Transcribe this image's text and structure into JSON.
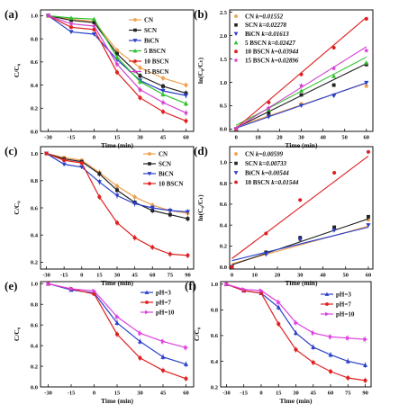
{
  "chart_data": [
    {
      "panel_label": "(a)",
      "type": "line",
      "x": [
        -30,
        -15,
        0,
        15,
        30,
        45,
        60
      ],
      "xlim": [
        -35,
        65
      ],
      "xticks": [
        -30,
        -15,
        0,
        15,
        30,
        45,
        60
      ],
      "ylim": [
        0.0,
        1.05
      ],
      "yticks": [
        0.0,
        0.2,
        0.4,
        0.6,
        0.8,
        1.0
      ],
      "xlabel": "Time (min)",
      "ylabel": "C/C₀",
      "legend": "top-right",
      "series": [
        {
          "name": "CN",
          "color": "#f0a050",
          "marker": "circle",
          "values": [
            1.0,
            0.97,
            0.95,
            0.7,
            0.55,
            0.46,
            0.4
          ]
        },
        {
          "name": "SCN",
          "color": "#222222",
          "marker": "square",
          "values": [
            1.0,
            0.96,
            0.94,
            0.67,
            0.48,
            0.39,
            0.33
          ]
        },
        {
          "name": "BiCN",
          "color": "#2a40c8",
          "marker": "triangle-down",
          "values": [
            1.0,
            0.86,
            0.84,
            0.62,
            0.44,
            0.35,
            0.31
          ]
        },
        {
          "name": "5 BSCN",
          "color": "#2ec02e",
          "marker": "triangle-up",
          "values": [
            1.0,
            0.98,
            0.97,
            0.64,
            0.43,
            0.32,
            0.24
          ]
        },
        {
          "name": "10 BSCN",
          "color": "#e02020",
          "marker": "circle",
          "values": [
            1.0,
            0.9,
            0.88,
            0.51,
            0.29,
            0.17,
            0.09
          ]
        },
        {
          "name": "15 BSCN",
          "color": "#d040d0",
          "marker": "star",
          "values": [
            1.0,
            0.93,
            0.91,
            0.58,
            0.36,
            0.25,
            0.16
          ]
        }
      ]
    },
    {
      "panel_label": "(b)",
      "type": "scatter",
      "x": [
        0,
        15,
        30,
        45,
        60
      ],
      "xlim": [
        -3,
        63
      ],
      "xticks": [
        0,
        10,
        20,
        30,
        40,
        50,
        60
      ],
      "ylim": [
        -0.05,
        2.55
      ],
      "yticks": [
        0.0,
        0.5,
        1.0,
        1.5,
        2.0,
        2.5
      ],
      "xlabel": "Time (min)",
      "ylabel": "ln(C₀/Cₜ)",
      "legend": "top-left",
      "series": [
        {
          "name": "CN",
          "k_label": "k=0.01552",
          "color": "#f0a050",
          "marker": "circle",
          "values": [
            0.0,
            0.3,
            0.54,
            0.73,
            0.92
          ],
          "fit": [
            0.05,
            0.98
          ]
        },
        {
          "name": "SCN",
          "k_label": "k=0.02278",
          "color": "#222222",
          "marker": "square",
          "values": [
            0.0,
            0.34,
            0.73,
            0.94,
            1.38
          ],
          "fit": [
            0.03,
            1.4
          ]
        },
        {
          "name": "BiCN",
          "k_label": "k=0.01613",
          "color": "#2a40c8",
          "marker": "triangle-down",
          "values": [
            0.0,
            0.26,
            0.5,
            0.71,
            0.99
          ],
          "fit": [
            0.02,
            0.99
          ]
        },
        {
          "name": "5 BSCN",
          "k_label": "k=0.02427",
          "color": "#2ec02e",
          "marker": "triangle-up",
          "values": [
            0.0,
            0.42,
            0.82,
            1.13,
            1.42
          ],
          "fit": [
            0.08,
            1.54
          ]
        },
        {
          "name": "10 BSCN",
          "k_label": "k=0.03944",
          "color": "#e02020",
          "marker": "circle",
          "values": [
            0.0,
            0.57,
            1.17,
            1.74,
            2.36
          ],
          "fit": [
            0.02,
            2.39
          ]
        },
        {
          "name": "15 BSCN",
          "k_label": "k=0.02896",
          "color": "#d040d0",
          "marker": "star",
          "values": [
            0.0,
            0.45,
            0.93,
            1.3,
            1.68
          ],
          "fit": [
            0.02,
            1.76
          ]
        }
      ]
    },
    {
      "panel_label": "(c)",
      "type": "line",
      "x": [
        -30,
        -15,
        0,
        15,
        30,
        45,
        60,
        75,
        90
      ],
      "xlim": [
        -35,
        95
      ],
      "xticks": [
        -30,
        -15,
        0,
        15,
        30,
        45,
        60,
        75,
        90
      ],
      "ylim": [
        0.15,
        1.05
      ],
      "yticks": [
        0.2,
        0.4,
        0.6,
        0.8,
        1.0
      ],
      "xlabel": "Time (min)",
      "ylabel": "C/C₀",
      "legend": "top-right",
      "series": [
        {
          "name": "CN",
          "color": "#f0a050",
          "marker": "circle",
          "values": [
            1.0,
            0.97,
            0.95,
            0.86,
            0.76,
            0.68,
            0.62,
            0.58,
            0.56
          ]
        },
        {
          "name": "SCN",
          "color": "#222222",
          "marker": "square",
          "values": [
            1.0,
            0.96,
            0.94,
            0.85,
            0.73,
            0.64,
            0.58,
            0.55,
            0.52
          ]
        },
        {
          "name": "BiCN",
          "color": "#2a40c8",
          "marker": "triangle-down",
          "values": [
            1.0,
            0.92,
            0.9,
            0.79,
            0.69,
            0.63,
            0.6,
            0.58,
            0.57
          ]
        },
        {
          "name": "10 BSCN",
          "color": "#e02020",
          "marker": "circle",
          "values": [
            1.0,
            0.95,
            0.93,
            0.68,
            0.49,
            0.38,
            0.31,
            0.26,
            0.25
          ]
        }
      ]
    },
    {
      "panel_label": "(d)",
      "type": "scatter",
      "x": [
        0,
        15,
        30,
        45,
        60
      ],
      "xlim": [
        -1,
        62
      ],
      "xticks": [
        0,
        10,
        20,
        30,
        40,
        50,
        60
      ],
      "ylim": [
        -0.02,
        1.15
      ],
      "yticks": [
        0.0,
        0.2,
        0.4,
        0.6,
        0.8,
        1.0
      ],
      "xlabel": "Time (min)",
      "ylabel": "ln(C₀/Cₜ)",
      "legend": "top-left",
      "series": [
        {
          "name": "CN",
          "k_label": "k=0.00599",
          "color": "#f0a050",
          "marker": "circle",
          "values": [
            0.0,
            0.13,
            0.26,
            0.36,
            0.45
          ],
          "fit": [
            0.03,
            0.39
          ]
        },
        {
          "name": "SCN",
          "k_label": "k=0.00733",
          "color": "#222222",
          "marker": "square",
          "values": [
            0.0,
            0.14,
            0.28,
            0.38,
            0.48
          ],
          "fit": [
            0.02,
            0.46
          ]
        },
        {
          "name": "BiCN",
          "k_label": "k=0.00544",
          "color": "#2a40c8",
          "marker": "triangle-down",
          "values": [
            0.0,
            0.12,
            0.26,
            0.35,
            0.4
          ],
          "fit": [
            0.06,
            0.38
          ]
        },
        {
          "name": "10 BSCN",
          "k_label": "k=0.01544",
          "color": "#e02020",
          "marker": "circle",
          "values": [
            0.0,
            0.32,
            0.64,
            0.9,
            1.1
          ],
          "fit": [
            0.08,
            1.06
          ]
        }
      ]
    },
    {
      "panel_label": "(e)",
      "type": "line",
      "x": [
        -30,
        -15,
        0,
        15,
        30,
        45,
        60
      ],
      "xlim": [
        -35,
        65
      ],
      "xticks": [
        -30,
        -15,
        0,
        15,
        30,
        45,
        60
      ],
      "ylim": [
        0.0,
        1.02
      ],
      "yticks": [
        0.0,
        0.2,
        0.4,
        0.6,
        0.8,
        1.0
      ],
      "xlabel": "Time (min)",
      "ylabel": "C/C₀",
      "legend": "right",
      "series": [
        {
          "name": "pH=3",
          "color": "#2a40c8",
          "marker": "triangle-up",
          "values": [
            1.0,
            0.94,
            0.91,
            0.62,
            0.44,
            0.29,
            0.22
          ]
        },
        {
          "name": "pH=7",
          "color": "#e02020",
          "marker": "circle",
          "values": [
            1.0,
            0.95,
            0.9,
            0.51,
            0.28,
            0.16,
            0.08
          ]
        },
        {
          "name": "pH=10",
          "color": "#e040e0",
          "marker": "triangle-right",
          "values": [
            1.0,
            0.95,
            0.93,
            0.68,
            0.52,
            0.44,
            0.38
          ]
        }
      ]
    },
    {
      "panel_label": "(f)",
      "type": "line",
      "x": [
        -30,
        -15,
        0,
        15,
        30,
        45,
        60,
        75,
        90
      ],
      "xlim": [
        -35,
        95
      ],
      "xticks": [
        -30,
        -15,
        0,
        15,
        30,
        45,
        60,
        75,
        90
      ],
      "ylim": [
        0.2,
        1.02
      ],
      "yticks": [
        0.2,
        0.4,
        0.6,
        0.8,
        1.0
      ],
      "xlabel": "Time (min)",
      "ylabel": "C/C₀",
      "legend": "right",
      "series": [
        {
          "name": "pH=3",
          "color": "#2a40c8",
          "marker": "triangle-up",
          "values": [
            1.0,
            0.95,
            0.93,
            0.82,
            0.62,
            0.51,
            0.45,
            0.4,
            0.37
          ]
        },
        {
          "name": "pH=7",
          "color": "#e02020",
          "marker": "circle",
          "values": [
            1.0,
            0.95,
            0.93,
            0.69,
            0.49,
            0.39,
            0.32,
            0.27,
            0.25
          ]
        },
        {
          "name": "pH=10",
          "color": "#e040e0",
          "marker": "triangle-right",
          "values": [
            1.0,
            0.96,
            0.95,
            0.86,
            0.7,
            0.62,
            0.59,
            0.58,
            0.57
          ]
        }
      ]
    }
  ]
}
